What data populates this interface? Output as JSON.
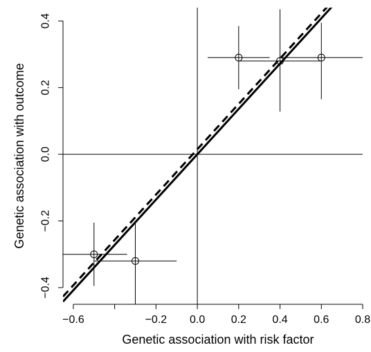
{
  "chart_data": {
    "type": "scatter",
    "title": "",
    "xlabel": "Genetic association with risk factor",
    "ylabel": "Genetic association with outcome",
    "xlim": [
      -0.65,
      0.8
    ],
    "ylim": [
      -0.45,
      0.44
    ],
    "x_ticks": [
      -0.6,
      -0.4,
      -0.2,
      0.0,
      0.2,
      0.4,
      0.6,
      0.8
    ],
    "x_tick_labels": [
      "−0.6",
      "",
      "−0.2",
      "0.0",
      "0.2",
      "0.4",
      "0.6",
      "0.8"
    ],
    "y_ticks": [
      -0.4,
      -0.2,
      0.0,
      0.2,
      0.4
    ],
    "y_tick_labels": [
      "−0.4",
      "−0.2",
      "0.0",
      "0.2",
      "0.4"
    ],
    "reference_lines": {
      "x": 0,
      "y": 0
    },
    "points": [
      {
        "x": -0.5,
        "y": -0.3,
        "x_low": -0.65,
        "x_high": -0.34,
        "y_low": -0.395,
        "y_high": -0.205
      },
      {
        "x": -0.3,
        "y": -0.32,
        "x_low": -0.5,
        "x_high": -0.1,
        "y_low": -0.45,
        "y_high": -0.2
      },
      {
        "x": 0.2,
        "y": 0.29,
        "x_low": 0.05,
        "x_high": 0.35,
        "y_low": 0.195,
        "y_high": 0.385
      },
      {
        "x": 0.4,
        "y": 0.28,
        "x_low": 0.2,
        "x_high": 0.6,
        "y_low": 0.128,
        "y_high": 0.435
      },
      {
        "x": 0.6,
        "y": 0.29,
        "x_low": 0.4,
        "x_high": 0.8,
        "y_low": 0.165,
        "y_high": 0.395
      }
    ],
    "fit_lines": [
      {
        "style": "solid",
        "slope": 0.68,
        "intercept": 0.0
      },
      {
        "style": "dashed",
        "slope": 0.68,
        "intercept": 0.015
      }
    ]
  }
}
